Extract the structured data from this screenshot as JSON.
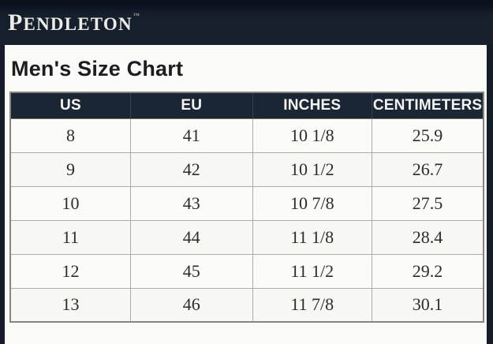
{
  "brand": {
    "logo_initial": "P",
    "logo_rest": "ENDLETON",
    "trademark_symbol": "™"
  },
  "page": {
    "title": "Men's Size Chart"
  },
  "size_chart": {
    "columns": [
      "US",
      "EU",
      "INCHES",
      "CENTIMETERS"
    ],
    "rows": [
      [
        "8",
        "41",
        "10 1/8",
        "25.9"
      ],
      [
        "9",
        "42",
        "10 1/2",
        "26.7"
      ],
      [
        "10",
        "43",
        "10 7/8",
        "27.5"
      ],
      [
        "11",
        "44",
        "11 1/8",
        "28.4"
      ],
      [
        "12",
        "45",
        "11 1/2",
        "29.2"
      ],
      [
        "13",
        "46",
        "11 7/8",
        "30.1"
      ]
    ]
  },
  "chart_data": {
    "type": "table",
    "title": "Men's Size Chart",
    "columns": [
      "US",
      "EU",
      "INCHES",
      "CENTIMETERS"
    ],
    "rows": [
      [
        "8",
        "41",
        "10 1/8",
        "25.9"
      ],
      [
        "9",
        "42",
        "10 1/2",
        "26.7"
      ],
      [
        "10",
        "43",
        "10 7/8",
        "27.5"
      ],
      [
        "11",
        "44",
        "11 1/8",
        "28.4"
      ],
      [
        "12",
        "45",
        "11 1/2",
        "29.2"
      ],
      [
        "13",
        "46",
        "11 7/8",
        "30.1"
      ]
    ]
  },
  "colors": {
    "topbar_navy": "#16202c",
    "table_header_navy": "#1b2634",
    "card_background": "#fafaf8",
    "header_text": "#f4f4f2",
    "body_text": "#2c2c2f"
  }
}
